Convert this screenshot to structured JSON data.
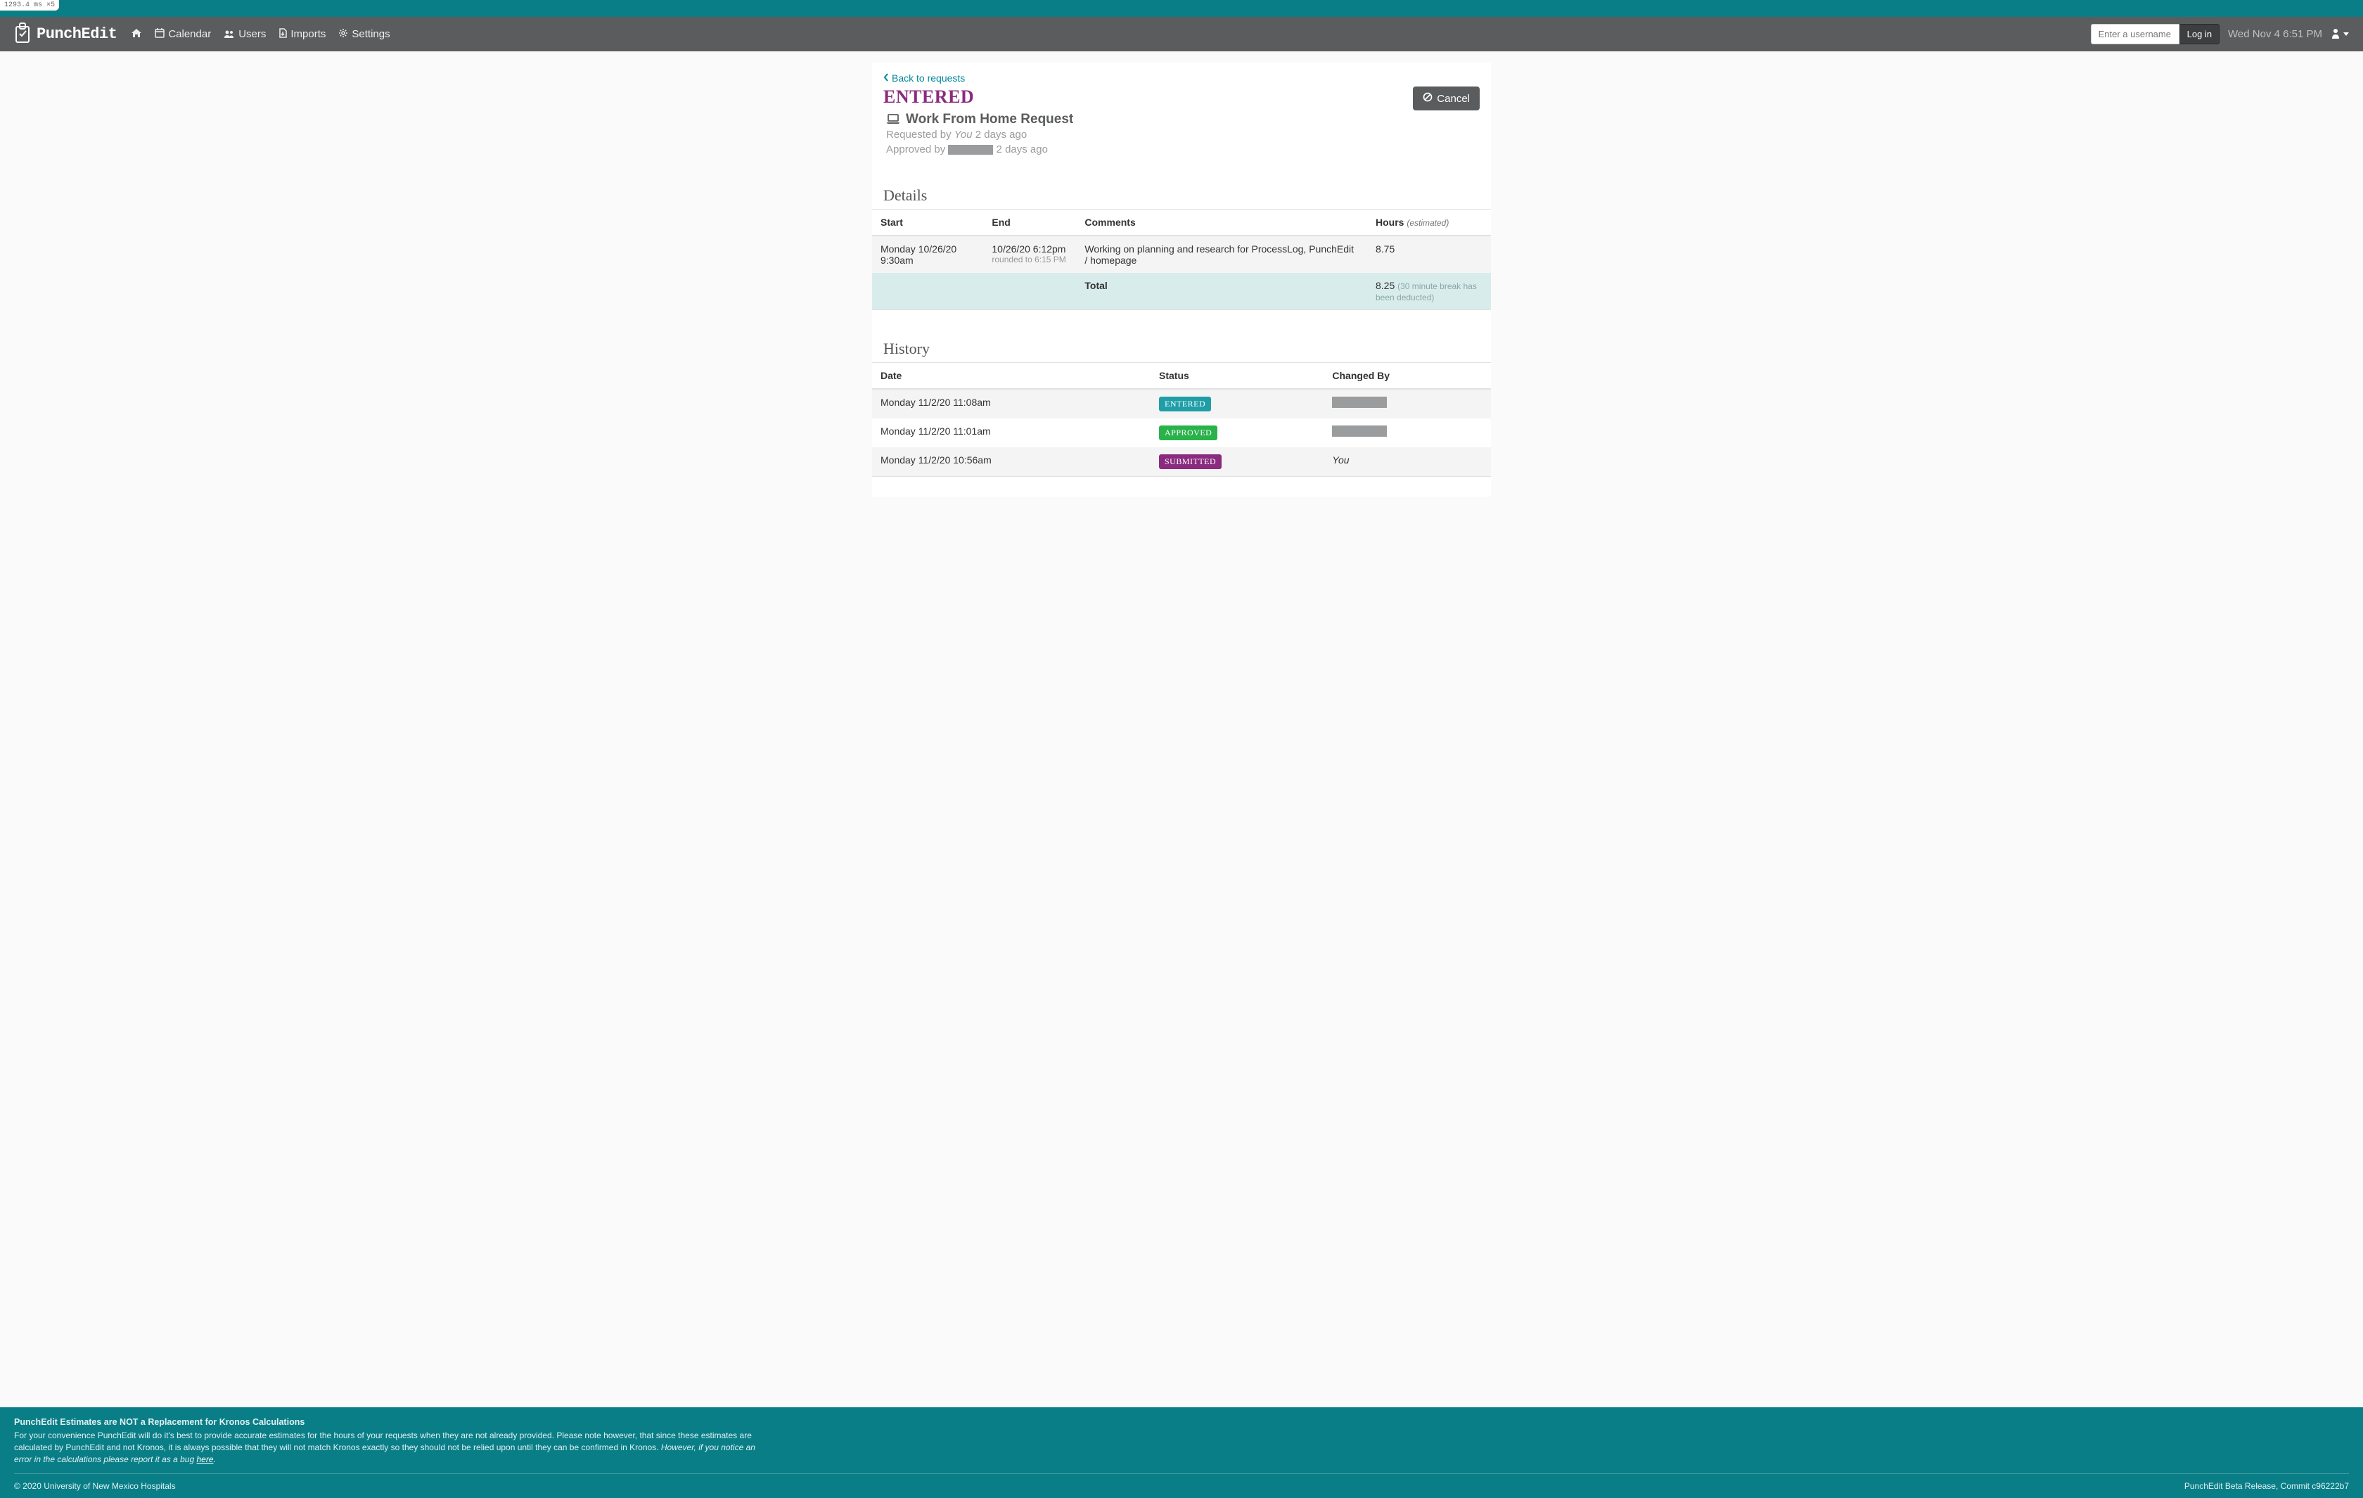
{
  "debug": {
    "timing": "1293.4 ms ×5"
  },
  "brand": {
    "name": "PunchEdit"
  },
  "nav": {
    "home": "",
    "calendar": "Calendar",
    "users": "Users",
    "imports": "Imports",
    "settings": "Settings"
  },
  "login": {
    "placeholder": "Enter a username",
    "button": "Log in"
  },
  "datetime": "Wed Nov 4 6:51 PM",
  "back_link": "Back to requests",
  "status": "ENTERED",
  "cancel_button": "Cancel",
  "request": {
    "title": "Work From Home Request",
    "requested_prefix": "Requested by ",
    "requested_who": "You",
    "requested_when": " 2 days ago",
    "approved_prefix": "Approved by ",
    "approved_when": " 2 days ago"
  },
  "details": {
    "heading": "Details",
    "cols": {
      "start": "Start",
      "end": "End",
      "comments": "Comments",
      "hours": "Hours",
      "hours_note": "(estimated)"
    },
    "row": {
      "start": "Monday 10/26/20 9:30am",
      "end": "10/26/20 6:12pm",
      "end_note": "rounded to 6:15 PM",
      "comments": "Working on planning and research for ProcessLog, PunchEdit / homepage",
      "hours": "8.75"
    },
    "total": {
      "label": "Total",
      "hours": "8.25",
      "note": "(30 minute break has been deducted)"
    }
  },
  "history": {
    "heading": "History",
    "cols": {
      "date": "Date",
      "status": "Status",
      "changed_by": "Changed By"
    },
    "rows": [
      {
        "date": "Monday 11/2/20 11:08am",
        "status": "ENTERED",
        "status_class": "pill-entered",
        "by": ""
      },
      {
        "date": "Monday 11/2/20 11:01am",
        "status": "APPROVED",
        "status_class": "pill-approved",
        "by": ""
      },
      {
        "date": "Monday 11/2/20 10:56am",
        "status": "SUBMITTED",
        "status_class": "pill-submitted",
        "by": "You"
      }
    ]
  },
  "footer": {
    "disclaim_title": "PunchEdit Estimates are NOT a Replacement for Kronos Calculations",
    "disclaim_body_1": "For your convenience PunchEdit will do it's best to provide accurate estimates for the hours of your requests when they are not already provided. Please note however, that since these estimates are calculated by PunchEdit and not Kronos, it is always possible that they will not match Kronos exactly so they should not be relied upon until they can be confirmed in Kronos. ",
    "disclaim_body_2": "However, if you notice an error in the calculations please report it as a bug ",
    "here": "here",
    "copyright": "© 2020 University of New Mexico Hospitals",
    "release": "PunchEdit Beta Release, Commit c96222b7"
  },
  "colors": {
    "teal": "#0a7e87",
    "navbar": "#5a5c5d",
    "status_purple": "#8a2b7f",
    "link_teal": "#008799"
  }
}
